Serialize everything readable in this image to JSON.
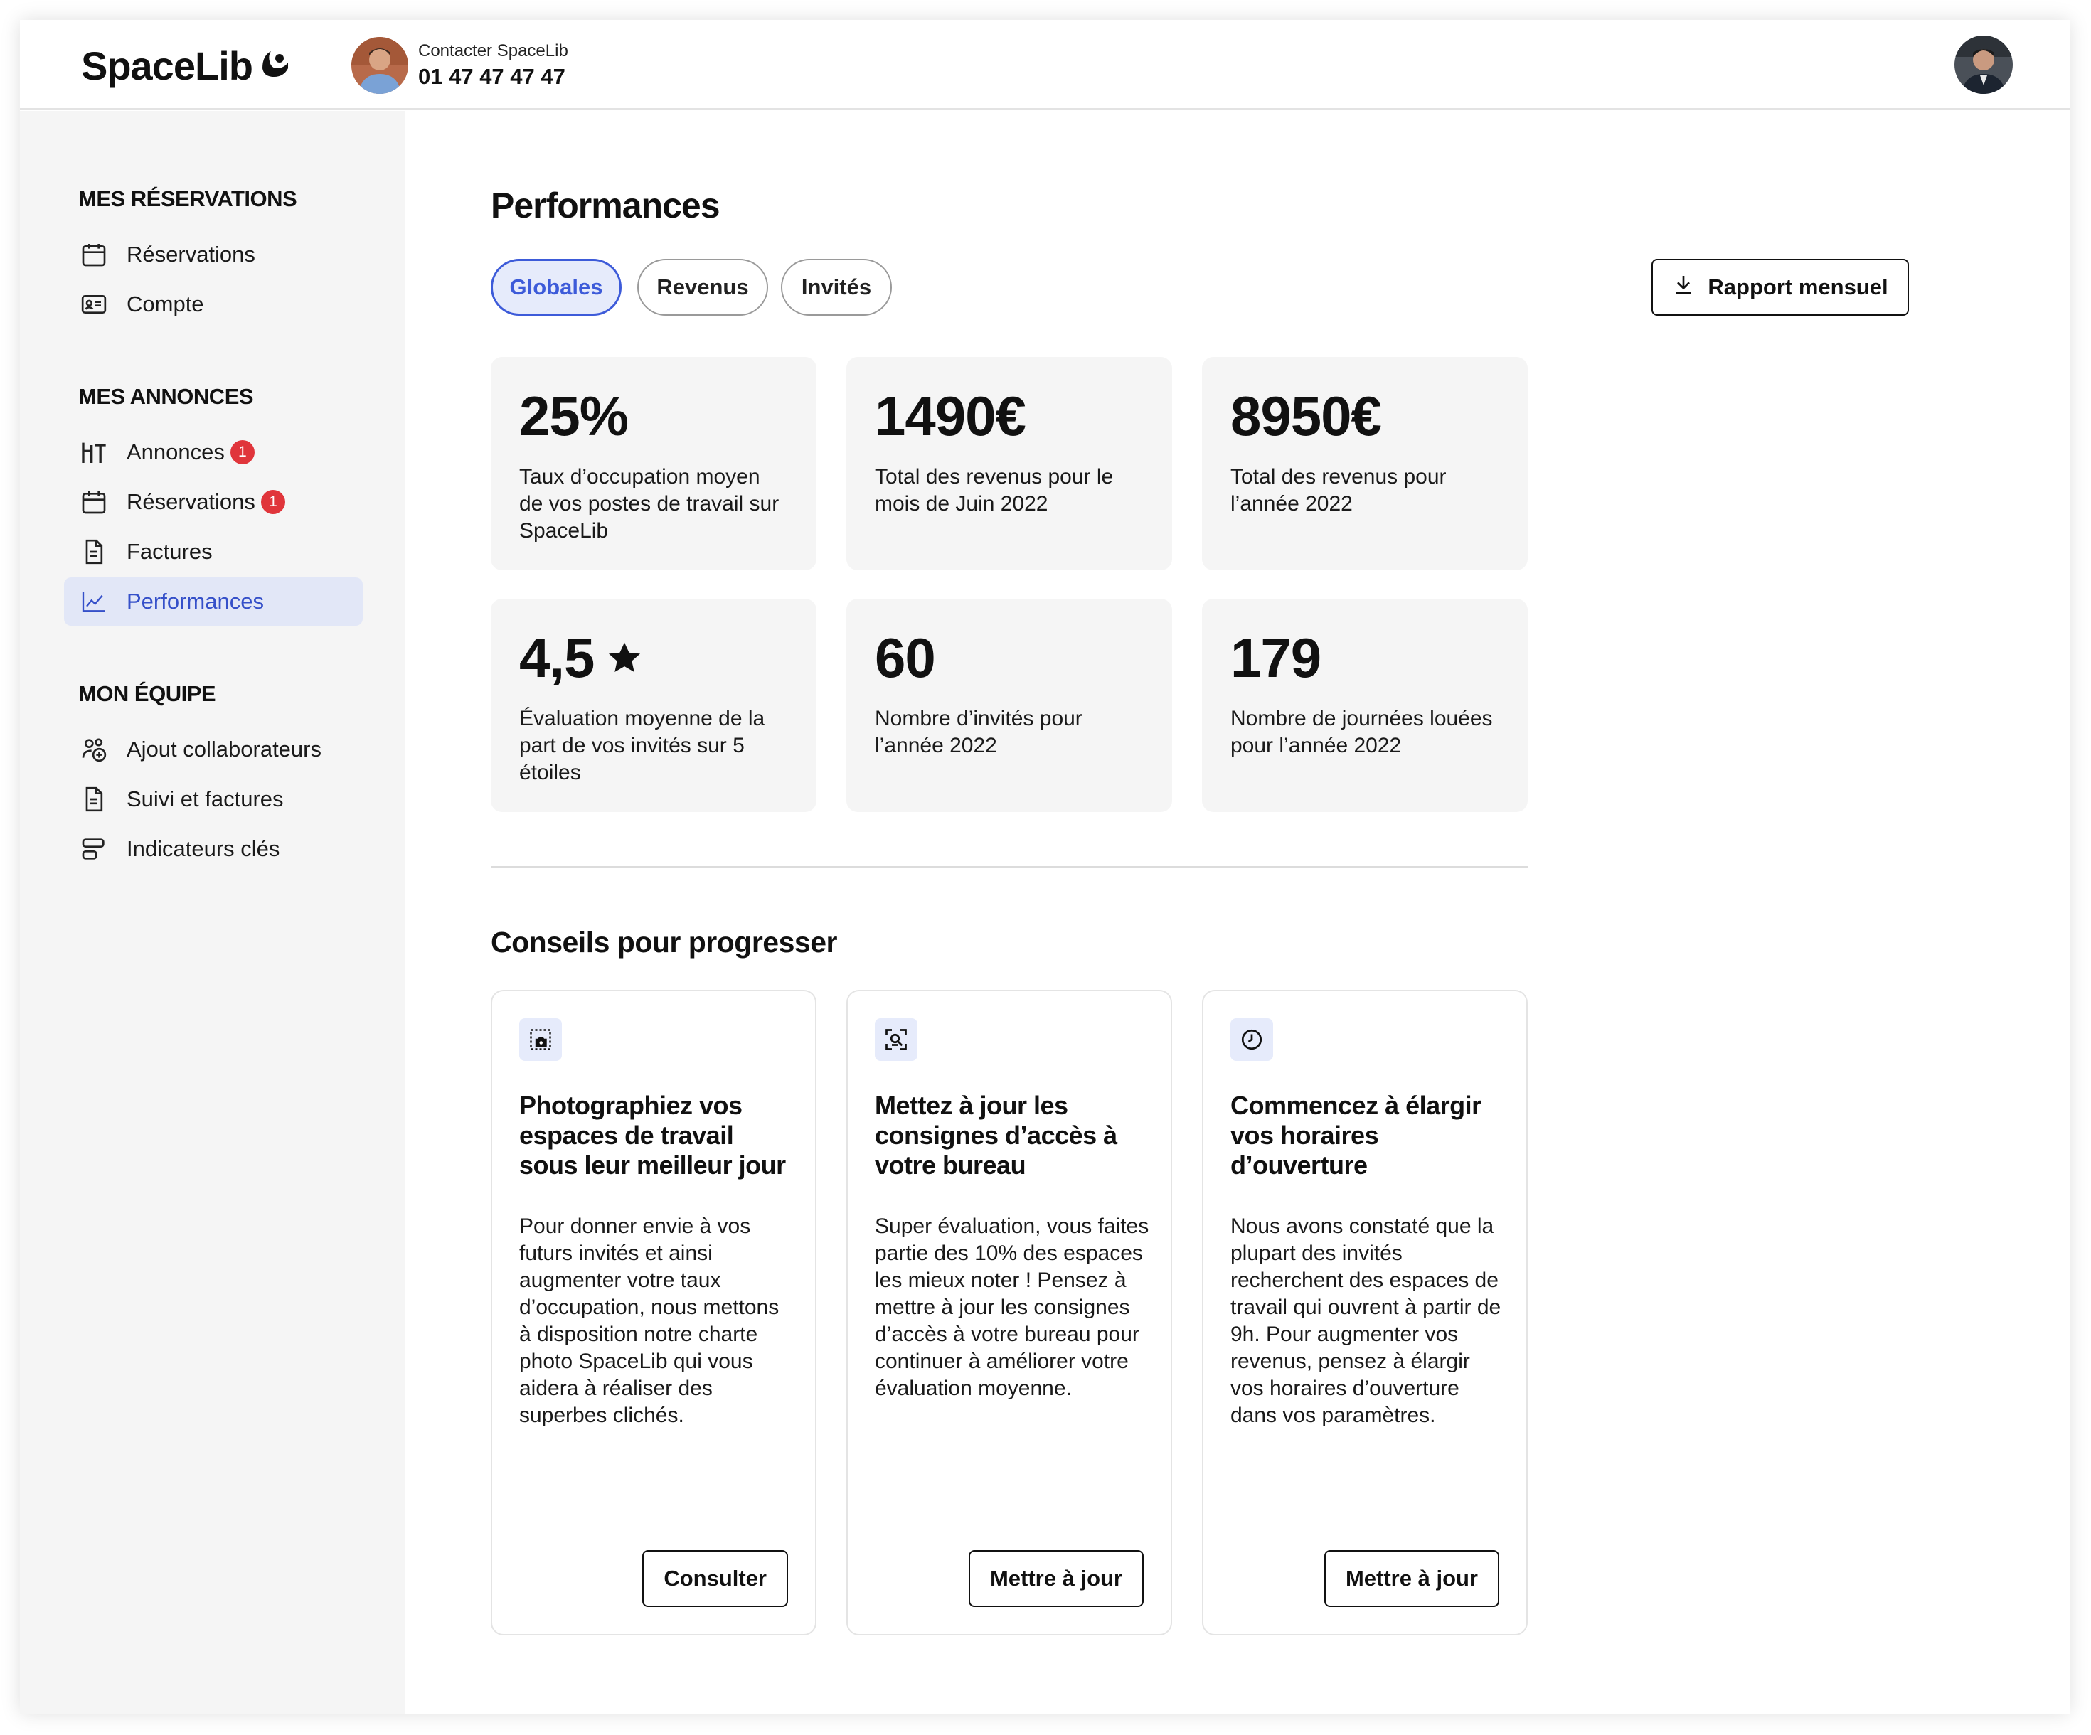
{
  "header": {
    "logo": "SpaceLib",
    "contact_label": "Contacter SpaceLib",
    "contact_phone": "01 47 47 47 47"
  },
  "sidebar": {
    "sections": [
      {
        "title": "MES RÉSERVATIONS",
        "items": [
          {
            "label": "Réservations",
            "icon": "calendar-icon"
          },
          {
            "label": "Compte",
            "icon": "id-card-icon"
          }
        ]
      },
      {
        "title": "MES ANNONCES",
        "items": [
          {
            "label": "Annonces",
            "icon": "desk-icon",
            "badge": "1"
          },
          {
            "label": "Réservations",
            "icon": "calendar-icon",
            "badge": "1"
          },
          {
            "label": "Factures",
            "icon": "document-icon"
          },
          {
            "label": "Performances",
            "icon": "chart-line-icon",
            "active": true
          }
        ]
      },
      {
        "title": "MON ÉQUIPE",
        "items": [
          {
            "label": "Ajout collaborateurs",
            "icon": "user-add-icon"
          },
          {
            "label": "Suivi et factures",
            "icon": "document-icon"
          },
          {
            "label": "Indicateurs clés",
            "icon": "bars-icon"
          }
        ]
      }
    ]
  },
  "main": {
    "title": "Performances",
    "tabs": [
      {
        "label": "Globales",
        "active": true
      },
      {
        "label": "Revenus"
      },
      {
        "label": "Invités"
      }
    ],
    "report_button": "Rapport mensuel",
    "stats": [
      {
        "value": "25%",
        "desc": "Taux d’occupation moyen de vos postes de travail sur SpaceLib"
      },
      {
        "value": "1490€",
        "desc": "Total des revenus pour le mois de Juin 2022"
      },
      {
        "value": "8950€",
        "desc": "Total des revenus pour l’année 2022"
      },
      {
        "value": "4,5",
        "desc": "Évaluation moyenne de la part de vos invités sur 5 étoiles",
        "icon": "star-icon"
      },
      {
        "value": "60",
        "desc": "Nombre d’invités pour l’année 2022"
      },
      {
        "value": "179",
        "desc": "Nombre de journées louées pour l’année 2022"
      }
    ],
    "tips_heading": "Conseils pour progresser",
    "tips": [
      {
        "icon": "photo-icon",
        "title": "Photographiez vos espaces de travail sous leur meilleur jour",
        "body": "Pour donner envie à vos futurs invités et ainsi augmenter votre taux d’occupation, nous mettons à disposition notre charte photo SpaceLib qui vous aidera à réaliser des superbes clichés.",
        "button": "Consulter"
      },
      {
        "icon": "key-access-icon",
        "title": "Mettez à jour les consignes d’accès à votre bureau",
        "body": "Super évaluation, vous faites partie des 10% des espaces les mieux noter ! Pensez à mettre à jour les consignes d’accès à votre bureau pour continuer à améliorer votre évaluation moyenne.",
        "button": "Mettre à jour"
      },
      {
        "icon": "clock-icon",
        "title": "Commencez à élargir vos horaires d’ouverture",
        "body": "Nous avons constaté que la plupart des invités recherchent des espaces de travail qui ouvrent à partir de 9h. Pour augmenter vos revenus, pensez à élargir vos horaires d’ouverture dans vos paramètres.",
        "button": "Mettre à jour"
      }
    ]
  }
}
